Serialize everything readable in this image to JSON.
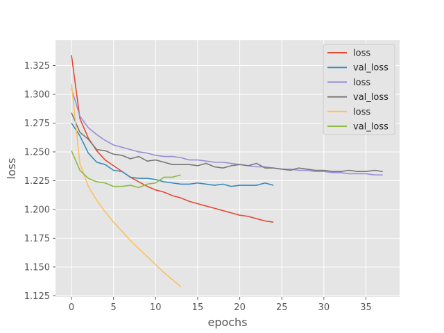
{
  "chart_data": {
    "type": "line",
    "title": "",
    "xlabel": "epochs",
    "ylabel": "loss",
    "xlim": [
      -1.9,
      39.0
    ],
    "ylim": [
      1.124,
      1.347
    ],
    "xticks": [
      0,
      5,
      10,
      15,
      20,
      25,
      30,
      35
    ],
    "yticks": [
      1.125,
      1.15,
      1.175,
      1.2,
      1.225,
      1.25,
      1.275,
      1.3,
      1.325
    ],
    "ytick_labels": [
      "1.125",
      "1.150",
      "1.175",
      "1.200",
      "1.225",
      "1.250",
      "1.275",
      "1.300",
      "1.325"
    ],
    "grid": true,
    "legend_position": "top-right",
    "colors": {
      "background": "#e5e5e5",
      "grid": "#ffffff",
      "tick_text": "#555555"
    },
    "series": [
      {
        "name": "loss",
        "color": "#e24a33",
        "values": [
          1.334,
          1.279,
          1.262,
          1.251,
          1.243,
          1.238,
          1.233,
          1.228,
          1.224,
          1.22,
          1.217,
          1.215,
          1.212,
          1.21,
          1.207,
          1.205,
          1.203,
          1.201,
          1.199,
          1.197,
          1.195,
          1.194,
          1.192,
          1.19,
          1.189
        ]
      },
      {
        "name": "val_loss",
        "color": "#348abd",
        "values": [
          1.275,
          1.264,
          1.249,
          1.241,
          1.239,
          1.234,
          1.233,
          1.228,
          1.227,
          1.227,
          1.226,
          1.224,
          1.223,
          1.222,
          1.222,
          1.223,
          1.222,
          1.221,
          1.222,
          1.22,
          1.221,
          1.221,
          1.221,
          1.223,
          1.221
        ]
      },
      {
        "name": "loss",
        "color": "#988ed5",
        "values": [
          1.305,
          1.281,
          1.271,
          1.265,
          1.26,
          1.256,
          1.254,
          1.252,
          1.25,
          1.249,
          1.247,
          1.246,
          1.246,
          1.245,
          1.243,
          1.243,
          1.242,
          1.241,
          1.241,
          1.24,
          1.239,
          1.238,
          1.237,
          1.237,
          1.236,
          1.235,
          1.235,
          1.234,
          1.234,
          1.233,
          1.233,
          1.232,
          1.232,
          1.231,
          1.231,
          1.231,
          1.23,
          1.23
        ]
      },
      {
        "name": "val_loss",
        "color": "#777777",
        "values": [
          1.284,
          1.267,
          1.261,
          1.252,
          1.251,
          1.248,
          1.247,
          1.244,
          1.246,
          1.242,
          1.243,
          1.241,
          1.239,
          1.239,
          1.239,
          1.238,
          1.24,
          1.237,
          1.236,
          1.238,
          1.239,
          1.238,
          1.24,
          1.236,
          1.236,
          1.235,
          1.234,
          1.236,
          1.235,
          1.234,
          1.234,
          1.233,
          1.233,
          1.234,
          1.233,
          1.233,
          1.234,
          1.233
        ]
      },
      {
        "name": "loss",
        "color": "#fbc15e",
        "values": [
          1.309,
          1.24,
          1.22,
          1.208,
          1.198,
          1.189,
          1.181,
          1.173,
          1.166,
          1.159,
          1.152,
          1.145,
          1.139,
          1.133
        ]
      },
      {
        "name": "val_loss",
        "color": "#8eba42",
        "values": [
          1.251,
          1.234,
          1.227,
          1.224,
          1.223,
          1.22,
          1.22,
          1.221,
          1.219,
          1.222,
          1.223,
          1.228,
          1.228,
          1.23
        ]
      }
    ]
  }
}
